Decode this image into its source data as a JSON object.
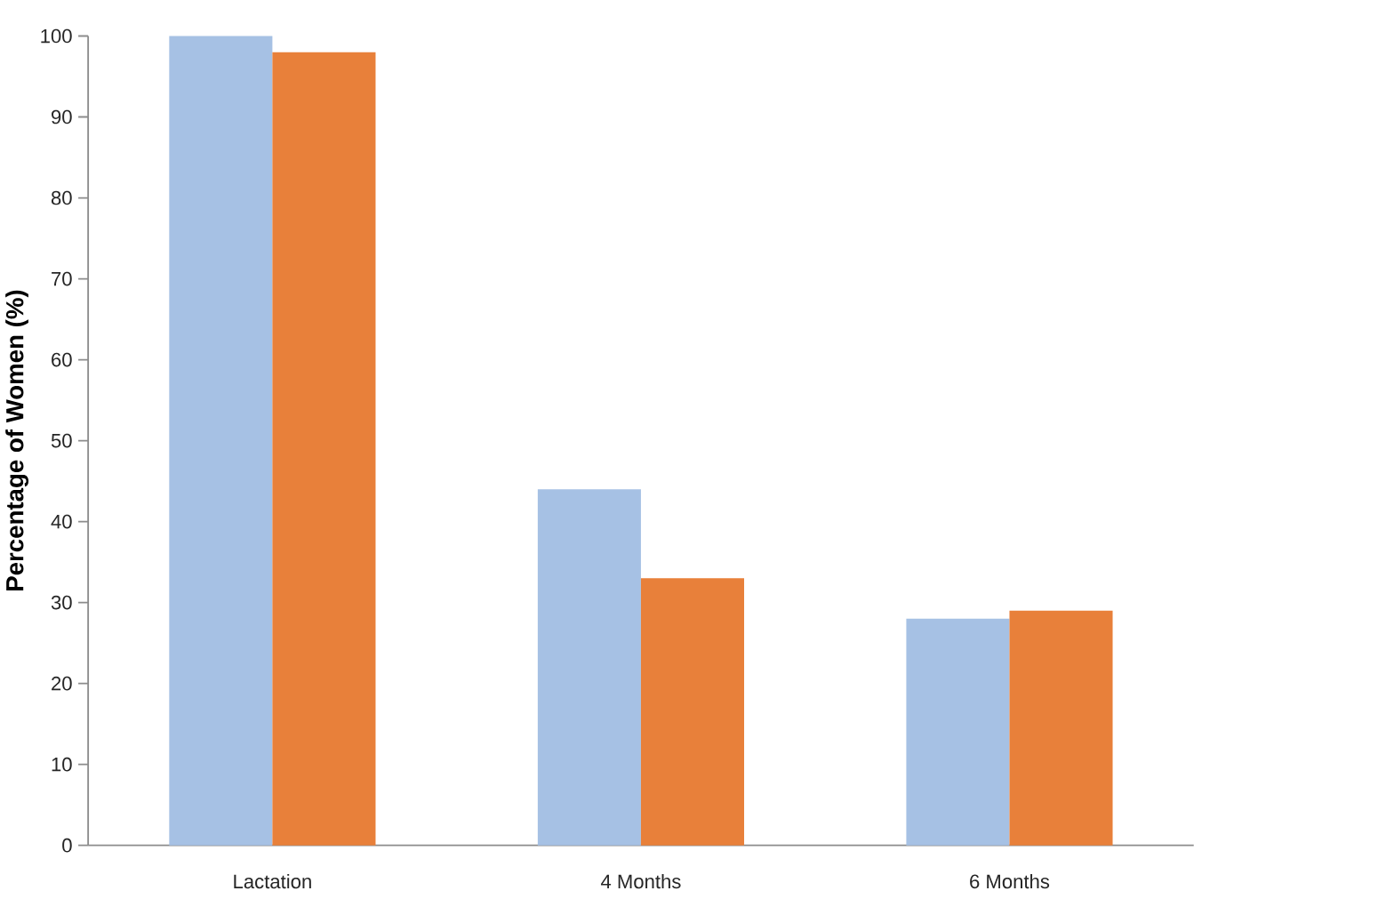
{
  "chart_data": {
    "type": "bar",
    "ylabel": "Percentage of Women  (%)",
    "categories": [
      "Lactation",
      "4 Months",
      "6 Months"
    ],
    "series": [
      {
        "color": "#a6c1e4",
        "values": [
          100,
          44,
          28
        ]
      },
      {
        "color": "#e8803a",
        "values": [
          98,
          33,
          29
        ]
      }
    ],
    "ylim": [
      0,
      100
    ],
    "yticks": [
      0,
      10,
      20,
      30,
      40,
      50,
      60,
      70,
      80,
      90,
      100
    ]
  }
}
